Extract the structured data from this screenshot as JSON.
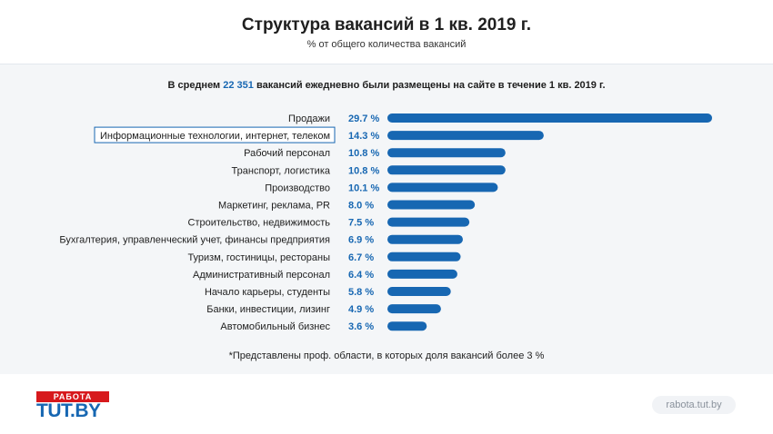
{
  "header": {
    "title": "Структура вакансий в 1 кв. 2019 г.",
    "subtitle": "% от общего количества вакансий"
  },
  "summary": {
    "prefix": "В среднем",
    "number": "22 351",
    "suffix": "вакансий ежедневно были размещены на сайте в течение 1 кв. 2019 г."
  },
  "footnote": "*Представлены проф. области, в которых доля вакансий более 3 %",
  "logo": {
    "top": "РАБОТА",
    "bottom": "TUT.BY"
  },
  "site": "rabota.tut.by",
  "colors": {
    "bar": "#1767b2",
    "value": "#1767b2",
    "logo_red": "#d7191c",
    "highlight_border": "#1767b2"
  },
  "chart_data": {
    "type": "bar",
    "orientation": "horizontal",
    "title": "Структура вакансий в 1 кв. 2019 г.",
    "subtitle": "% от общего количества вакансий",
    "categories": [
      "Продажи",
      "Информационные технологии, интернет, телеком",
      "Рабочий персонал",
      "Транспорт, логистика",
      "Производство",
      "Маркетинг, реклама, PR",
      "Строительство, недвижимость",
      "Бухгалтерия, управленческий учет, финансы предприятия",
      "Туризм, гостиницы, рестораны",
      "Административный персонал",
      "Начало карьеры, студенты",
      "Банки, инвестиции, лизинг",
      "Автомобильный бизнес"
    ],
    "values": [
      29.7,
      14.3,
      10.8,
      10.8,
      10.1,
      8.0,
      7.5,
      6.9,
      6.7,
      6.4,
      5.8,
      4.9,
      3.6
    ],
    "value_labels": [
      "29.7 %",
      "14.3 %",
      "10.8 %",
      "10.8 %",
      "10.1 %",
      "8.0 %",
      "7.5 %",
      "6.9 %",
      "6.7 %",
      "6.4 %",
      "5.8 %",
      "4.9 %",
      "3.6 %"
    ],
    "highlighted_category": "Информационные технологии, интернет, телеком",
    "xlim": [
      0,
      29.7
    ],
    "grid": false,
    "legend": "none"
  }
}
